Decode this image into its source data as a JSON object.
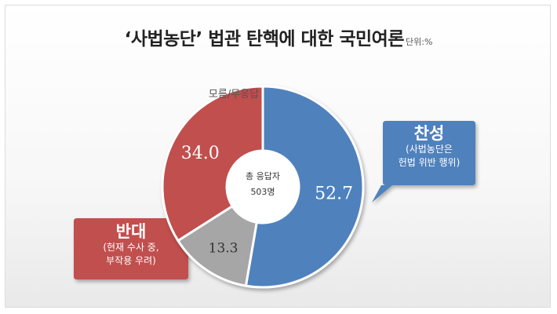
{
  "title": "‘사법농단’ 법관 탄핵에 대한 국민여론",
  "unit_note": "단위:%",
  "center_label": {
    "line1": "총 응답자",
    "line2": "503명"
  },
  "colors": {
    "yes": "#4f81bd",
    "no": "#c0504d",
    "unknown": "#a6a6a6",
    "outline": "#ffffff"
  },
  "chart_data": {
    "type": "pie",
    "title": "‘사법농단’ 법관 탄핵에 대한 국민여론",
    "unit": "단위:%",
    "slices": [
      {
        "key": "yes",
        "label": "찬성",
        "value": 52.7,
        "value_text": "52.7"
      },
      {
        "key": "unknown",
        "label": "모름/무응답",
        "value": 13.3,
        "value_text": "13.3"
      },
      {
        "key": "no",
        "label": "반대",
        "value": 34.0,
        "value_text": "34.0"
      }
    ]
  },
  "callouts": {
    "yes": {
      "title": "찬성",
      "line1": "(사법농단은",
      "line2": "헌법 위반 행위)"
    },
    "no": {
      "title": "반대",
      "line1": "(현재 수사 중,",
      "line2": "부작용 우려)"
    },
    "unknown": {
      "title": "모름/무응답"
    }
  }
}
